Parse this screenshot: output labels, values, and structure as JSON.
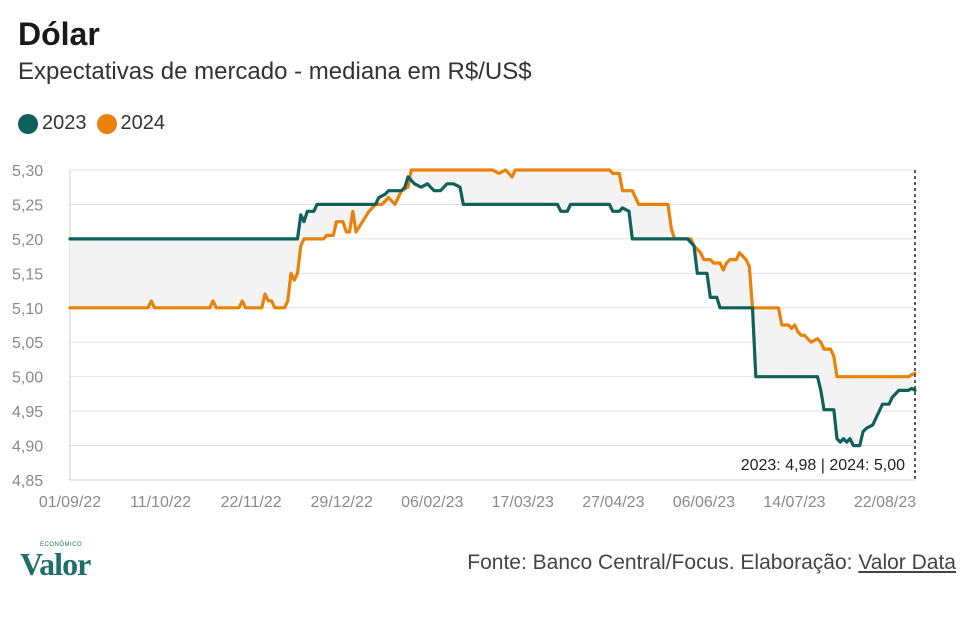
{
  "title": "Dólar",
  "subtitle": "Expectativas de mercado - mediana em R$/US$",
  "legend": [
    {
      "label": "2023",
      "color": "#0f615a"
    },
    {
      "label": "2024",
      "color": "#e8820a"
    }
  ],
  "source": {
    "prefix": "Fonte: Banco Central/Focus. Elaboração: ",
    "link": "Valor Data"
  },
  "logo": {
    "small": "ECONÔMICO",
    "main": "Valor"
  },
  "chart_data": {
    "type": "line",
    "x_ticks": [
      "01/09/22",
      "11/10/22",
      "22/11/22",
      "29/12/22",
      "06/02/23",
      "17/03/23",
      "27/04/23",
      "06/06/23",
      "14/07/23",
      "22/08/23"
    ],
    "y_ticks": [
      "5,30",
      "5,25",
      "5,20",
      "5,15",
      "5,10",
      "5,05",
      "5,00",
      "4,95",
      "4,90",
      "4,85"
    ],
    "ylim": [
      4.85,
      5.3
    ],
    "grid": true,
    "legend_position": "top-left",
    "annotation": "2023: 4,98 | 2024: 5,00",
    "series": [
      {
        "name": "2023",
        "color": "#0f615a",
        "points": [
          [
            0,
            5.2
          ],
          [
            35,
            5.2
          ],
          [
            35.5,
            5.235
          ],
          [
            36,
            5.225
          ],
          [
            36.5,
            5.24
          ],
          [
            37.5,
            5.24
          ],
          [
            38,
            5.25
          ],
          [
            47,
            5.25
          ],
          [
            47.5,
            5.26
          ],
          [
            48.5,
            5.265
          ],
          [
            49,
            5.27
          ],
          [
            51,
            5.27
          ],
          [
            51.5,
            5.275
          ],
          [
            52,
            5.29
          ],
          [
            53,
            5.28
          ],
          [
            54,
            5.275
          ],
          [
            55,
            5.28
          ],
          [
            56,
            5.27
          ],
          [
            57,
            5.27
          ],
          [
            58,
            5.28
          ],
          [
            59,
            5.28
          ],
          [
            60,
            5.275
          ],
          [
            60.5,
            5.25
          ],
          [
            65,
            5.25
          ],
          [
            75,
            5.25
          ],
          [
            75.5,
            5.24
          ],
          [
            76.5,
            5.24
          ],
          [
            77,
            5.25
          ],
          [
            83,
            5.25
          ],
          [
            83.5,
            5.24
          ],
          [
            84.5,
            5.24
          ],
          [
            85,
            5.245
          ],
          [
            86,
            5.24
          ],
          [
            86.5,
            5.2
          ],
          [
            93,
            5.2
          ],
          [
            95,
            5.2
          ],
          [
            96,
            5.19
          ],
          [
            96.5,
            5.15
          ],
          [
            98,
            5.15
          ],
          [
            98.5,
            5.115
          ],
          [
            99.5,
            5.115
          ],
          [
            100,
            5.1
          ],
          [
            105,
            5.1
          ],
          [
            105.5,
            5.0
          ],
          [
            110,
            5.0
          ],
          [
            113,
            5.0
          ],
          [
            115,
            5.0
          ],
          [
            115.5,
            4.98
          ],
          [
            116,
            4.952
          ],
          [
            117.5,
            4.952
          ],
          [
            118,
            4.91
          ],
          [
            118.5,
            4.905
          ],
          [
            119,
            4.91
          ],
          [
            119.5,
            4.905
          ],
          [
            120,
            4.91
          ],
          [
            120.5,
            4.9
          ],
          [
            121.5,
            4.9
          ],
          [
            122,
            4.92
          ],
          [
            122.5,
            4.925
          ],
          [
            123.5,
            4.93
          ],
          [
            124,
            4.94
          ],
          [
            124.5,
            4.95
          ],
          [
            125,
            4.96
          ],
          [
            126,
            4.96
          ],
          [
            126.5,
            4.97
          ],
          [
            127,
            4.975
          ],
          [
            127.5,
            4.98
          ],
          [
            129,
            4.98
          ],
          [
            129.5,
            4.983
          ],
          [
            130,
            4.98
          ]
        ]
      },
      {
        "name": "2024",
        "color": "#e8820a",
        "points": [
          [
            0,
            5.1
          ],
          [
            12,
            5.1
          ],
          [
            12.5,
            5.11
          ],
          [
            13,
            5.1
          ],
          [
            21.5,
            5.1
          ],
          [
            22,
            5.11
          ],
          [
            22.5,
            5.1
          ],
          [
            26,
            5.1
          ],
          [
            26.5,
            5.11
          ],
          [
            27,
            5.1
          ],
          [
            29.5,
            5.1
          ],
          [
            30,
            5.12
          ],
          [
            30.5,
            5.11
          ],
          [
            31,
            5.11
          ],
          [
            31.5,
            5.1
          ],
          [
            33,
            5.1
          ],
          [
            33.5,
            5.11
          ],
          [
            34,
            5.15
          ],
          [
            34.5,
            5.14
          ],
          [
            35,
            5.15
          ],
          [
            35.5,
            5.19
          ],
          [
            36,
            5.2
          ],
          [
            39,
            5.2
          ],
          [
            39.5,
            5.205
          ],
          [
            40.5,
            5.205
          ],
          [
            41,
            5.225
          ],
          [
            42,
            5.225
          ],
          [
            42.5,
            5.21
          ],
          [
            43,
            5.21
          ],
          [
            43.5,
            5.24
          ],
          [
            44,
            5.21
          ],
          [
            45,
            5.225
          ],
          [
            46,
            5.24
          ],
          [
            47,
            5.25
          ],
          [
            48,
            5.25
          ],
          [
            49,
            5.26
          ],
          [
            50,
            5.25
          ],
          [
            51,
            5.27
          ],
          [
            52,
            5.275
          ],
          [
            52.5,
            5.3
          ],
          [
            56,
            5.3
          ],
          [
            59,
            5.3
          ],
          [
            65,
            5.3
          ],
          [
            66,
            5.295
          ],
          [
            67,
            5.3
          ],
          [
            67.5,
            5.295
          ],
          [
            68,
            5.29
          ],
          [
            68.5,
            5.3
          ],
          [
            80,
            5.3
          ],
          [
            83,
            5.3
          ],
          [
            83.5,
            5.295
          ],
          [
            84.5,
            5.295
          ],
          [
            85,
            5.27
          ],
          [
            86.5,
            5.27
          ],
          [
            87,
            5.26
          ],
          [
            87.5,
            5.25
          ],
          [
            92,
            5.25
          ],
          [
            92.5,
            5.215
          ],
          [
            93,
            5.2
          ],
          [
            95.5,
            5.2
          ],
          [
            96,
            5.19
          ],
          [
            97,
            5.18
          ],
          [
            97.5,
            5.17
          ],
          [
            98.5,
            5.17
          ],
          [
            99,
            5.165
          ],
          [
            100,
            5.165
          ],
          [
            100.5,
            5.155
          ],
          [
            101,
            5.165
          ],
          [
            101.5,
            5.17
          ],
          [
            102.5,
            5.17
          ],
          [
            103,
            5.18
          ],
          [
            104,
            5.17
          ],
          [
            104.5,
            5.16
          ],
          [
            105,
            5.1
          ],
          [
            109,
            5.1
          ],
          [
            109.5,
            5.075
          ],
          [
            110,
            5.075
          ],
          [
            110.5,
            5.075
          ],
          [
            111,
            5.07
          ],
          [
            111.5,
            5.075
          ],
          [
            112,
            5.065
          ],
          [
            112.5,
            5.06
          ],
          [
            113,
            5.06
          ],
          [
            114,
            5.05
          ],
          [
            115,
            5.055
          ],
          [
            115.5,
            5.05
          ],
          [
            116,
            5.04
          ],
          [
            117,
            5.04
          ],
          [
            117.5,
            5.03
          ],
          [
            118,
            5.0
          ],
          [
            127,
            5.0
          ],
          [
            129,
            5.0
          ],
          [
            129.5,
            5.003
          ],
          [
            130,
            5.005
          ]
        ]
      }
    ]
  }
}
